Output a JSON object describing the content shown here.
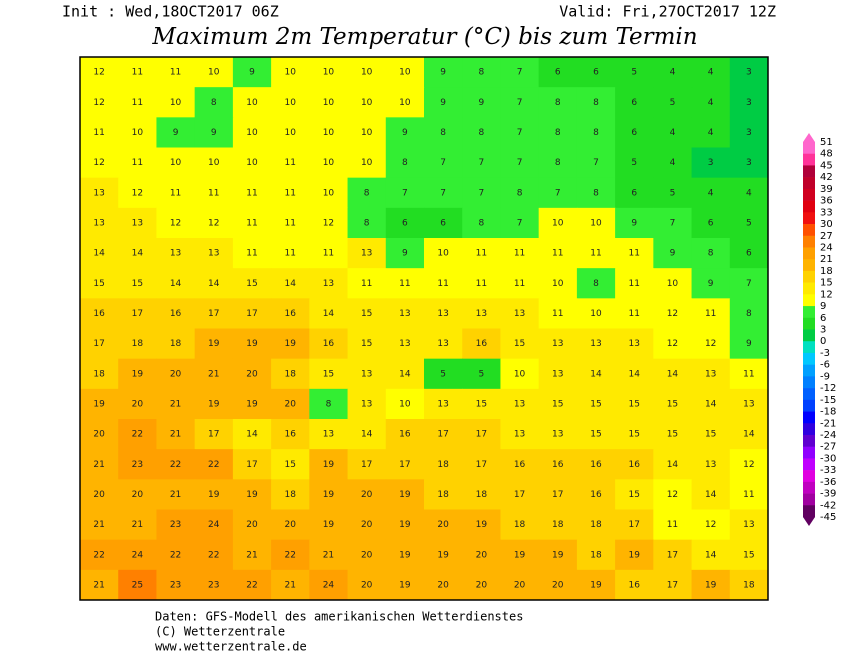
{
  "header": {
    "init": "Init : Wed,18OCT2017 06Z",
    "valid": "Valid: Fri,27OCT2017 12Z",
    "title": "Maximum 2m Temperatur (°C) bis zum Termin"
  },
  "map": {
    "rows": [
      [
        12,
        11,
        11,
        10,
        9,
        10,
        10,
        10,
        10,
        9,
        8,
        7,
        6,
        6,
        5,
        4,
        4,
        3
      ],
      [
        12,
        11,
        10,
        8,
        10,
        10,
        10,
        10,
        10,
        9,
        9,
        7,
        8,
        8,
        6,
        5,
        4,
        3
      ],
      [
        11,
        10,
        9,
        9,
        10,
        10,
        10,
        10,
        9,
        8,
        8,
        7,
        8,
        8,
        6,
        4,
        4,
        3
      ],
      [
        12,
        11,
        10,
        10,
        10,
        11,
        10,
        10,
        8,
        7,
        7,
        7,
        8,
        7,
        5,
        4,
        3,
        3
      ],
      [
        13,
        12,
        11,
        11,
        11,
        11,
        10,
        8,
        7,
        7,
        7,
        8,
        7,
        8,
        6,
        5,
        4,
        4
      ],
      [
        13,
        13,
        12,
        12,
        11,
        11,
        12,
        8,
        6,
        6,
        8,
        7,
        10,
        10,
        9,
        7,
        6,
        5
      ],
      [
        14,
        14,
        13,
        13,
        11,
        11,
        11,
        13,
        9,
        10,
        11,
        11,
        11,
        11,
        11,
        9,
        8,
        6
      ],
      [
        15,
        15,
        14,
        14,
        15,
        14,
        13,
        11,
        11,
        11,
        11,
        11,
        10,
        8,
        11,
        10,
        9,
        7
      ],
      [
        16,
        17,
        16,
        17,
        17,
        16,
        14,
        15,
        13,
        13,
        13,
        13,
        11,
        10,
        11,
        12,
        11,
        8
      ],
      [
        17,
        18,
        18,
        19,
        19,
        19,
        16,
        15,
        13,
        13,
        16,
        15,
        13,
        13,
        13,
        12,
        12,
        9
      ],
      [
        18,
        19,
        20,
        21,
        20,
        18,
        15,
        13,
        14,
        5,
        5,
        10,
        13,
        14,
        14,
        14,
        13,
        11
      ],
      [
        19,
        20,
        21,
        19,
        19,
        20,
        8,
        13,
        10,
        13,
        15,
        13,
        15,
        15,
        15,
        15,
        14,
        13
      ],
      [
        20,
        22,
        21,
        17,
        14,
        16,
        13,
        14,
        16,
        17,
        17,
        13,
        13,
        15,
        15,
        15,
        15,
        14
      ],
      [
        21,
        23,
        22,
        22,
        17,
        15,
        19,
        17,
        17,
        18,
        17,
        16,
        16,
        16,
        16,
        14,
        13,
        12
      ],
      [
        20,
        20,
        21,
        19,
        19,
        18,
        19,
        20,
        19,
        18,
        18,
        17,
        17,
        16,
        15,
        12,
        14,
        11
      ],
      [
        21,
        21,
        23,
        24,
        20,
        20,
        19,
        20,
        19,
        20,
        19,
        18,
        18,
        18,
        17,
        11,
        12,
        13
      ],
      [
        22,
        24,
        22,
        22,
        21,
        22,
        21,
        20,
        19,
        19,
        20,
        19,
        19,
        18,
        19,
        17,
        14,
        15
      ],
      [
        21,
        25,
        23,
        23,
        22,
        21,
        24,
        20,
        19,
        20,
        20,
        20,
        20,
        19,
        16,
        17,
        19,
        18
      ]
    ]
  },
  "scale": {
    "labels": [
      51,
      48,
      45,
      42,
      39,
      36,
      33,
      30,
      27,
      24,
      21,
      18,
      15,
      12,
      9,
      6,
      3,
      0,
      -3,
      -6,
      -9,
      -12,
      -15,
      -18,
      -21,
      -24,
      -27,
      -30,
      -33,
      -36,
      -39,
      -42,
      -45
    ],
    "colors": [
      "#ff66cc",
      "#ff3399",
      "#b0003a",
      "#c0002a",
      "#d00020",
      "#e00010",
      "#f01010",
      "#ff5000",
      "#ff8000",
      "#ffa000",
      "#ffb400",
      "#ffd200",
      "#ffea00",
      "#ffff00",
      "#33ee33",
      "#22dd22",
      "#00cc44",
      "#00e0c0",
      "#00c8ff",
      "#00a0ff",
      "#0080ff",
      "#0060ff",
      "#0040ff",
      "#0000ff",
      "#3000e0",
      "#6000d0",
      "#9000ff",
      "#c000ff",
      "#e000e0",
      "#c000c0",
      "#a000a0",
      "#600060"
    ]
  },
  "footer": [
    "Daten: GFS-Modell des amerikanischen Wetterdienstes",
    "(C) Wetterzentrale",
    "www.wetterzentrale.de"
  ]
}
